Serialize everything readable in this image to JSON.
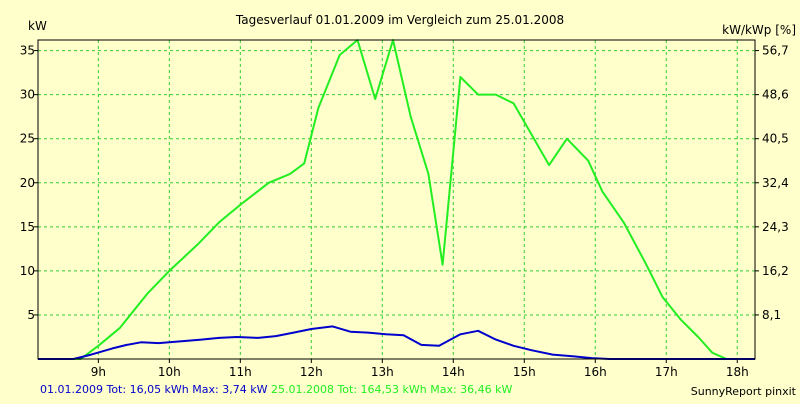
{
  "colors": {
    "background": "#ffffcc",
    "grid": "#33cc33",
    "series_green": "#22ee22",
    "series_blue": "#0000cc",
    "axis": "#000000"
  },
  "chart_data": {
    "type": "line",
    "title": "Tagesverlauf 01.01.2009 im Vergleich zum 25.01.2008",
    "ylabel_left": "kW",
    "ylabel_right": "kW/kWp [%]",
    "xlabel": "",
    "xlim": [
      8.15,
      18.25
    ],
    "ylim": [
      0,
      36.2
    ],
    "x_ticks": [
      {
        "value": 9,
        "label": "9h"
      },
      {
        "value": 10,
        "label": "10h"
      },
      {
        "value": 11,
        "label": "11h"
      },
      {
        "value": 12,
        "label": "12h"
      },
      {
        "value": 13,
        "label": "13h"
      },
      {
        "value": 14,
        "label": "14h"
      },
      {
        "value": 15,
        "label": "15h"
      },
      {
        "value": 16,
        "label": "16h"
      },
      {
        "value": 17,
        "label": "17h"
      },
      {
        "value": 18,
        "label": "18h"
      }
    ],
    "y_ticks_left": [
      {
        "value": 5,
        "label": "5"
      },
      {
        "value": 10,
        "label": "10"
      },
      {
        "value": 15,
        "label": "15"
      },
      {
        "value": 20,
        "label": "20"
      },
      {
        "value": 25,
        "label": "25"
      },
      {
        "value": 30,
        "label": "30"
      },
      {
        "value": 35,
        "label": "35"
      }
    ],
    "y_ticks_right": [
      {
        "value": 5,
        "label": "8,1"
      },
      {
        "value": 10,
        "label": "16,2"
      },
      {
        "value": 15,
        "label": "24,3"
      },
      {
        "value": 20,
        "label": "32,4"
      },
      {
        "value": 25,
        "label": "40,5"
      },
      {
        "value": 30,
        "label": "48,6"
      },
      {
        "value": 35,
        "label": "56,7"
      }
    ],
    "grid": true,
    "series": [
      {
        "name": "25.01.2008",
        "color_key": "series_green",
        "x": [
          8.15,
          8.75,
          9.0,
          9.3,
          9.7,
          10.0,
          10.4,
          10.7,
          11.0,
          11.4,
          11.7,
          11.9,
          12.1,
          12.4,
          12.65,
          12.9,
          13.15,
          13.4,
          13.65,
          13.85,
          14.1,
          14.35,
          14.6,
          14.85,
          15.1,
          15.35,
          15.6,
          15.9,
          16.1,
          16.4,
          16.7,
          16.95,
          17.2,
          17.45,
          17.65,
          17.85,
          18.05,
          18.25
        ],
        "y": [
          0.0,
          0.0,
          1.5,
          3.5,
          7.5,
          10.0,
          13.0,
          15.5,
          17.5,
          20.0,
          21.0,
          22.2,
          28.5,
          34.5,
          36.2,
          29.5,
          36.2,
          27.5,
          21.0,
          10.7,
          32.0,
          30.0,
          30.0,
          29.0,
          25.5,
          22.0,
          25.0,
          22.5,
          19.0,
          15.5,
          11.0,
          7.0,
          4.5,
          2.5,
          0.7,
          0.0,
          0.0,
          0.0
        ]
      },
      {
        "name": "01.01.2009",
        "color_key": "series_blue",
        "x": [
          8.15,
          8.65,
          8.9,
          9.2,
          9.4,
          9.6,
          9.85,
          10.15,
          10.45,
          10.7,
          10.95,
          11.25,
          11.5,
          11.75,
          12.0,
          12.3,
          12.55,
          12.8,
          13.05,
          13.3,
          13.55,
          13.8,
          14.1,
          14.35,
          14.6,
          14.85,
          15.1,
          15.4,
          15.7,
          15.95,
          16.2,
          16.45,
          16.7,
          17.0,
          17.5,
          18.25
        ],
        "y": [
          0.0,
          0.0,
          0.5,
          1.2,
          1.6,
          1.9,
          1.8,
          2.0,
          2.2,
          2.4,
          2.5,
          2.4,
          2.6,
          3.0,
          3.4,
          3.7,
          3.1,
          3.0,
          2.8,
          2.7,
          1.6,
          1.5,
          2.8,
          3.2,
          2.2,
          1.5,
          1.0,
          0.5,
          0.3,
          0.1,
          0.0,
          0.0,
          0.0,
          0.0,
          0.0,
          0.0
        ]
      }
    ],
    "legend": [
      {
        "text": "01.01.2009 Tot: 16,05 kWh Max: 3,74 kW",
        "color_key": "series_blue"
      },
      {
        "text": "25.01.2008 Tot: 164,53 kWh Max: 36,46 kW",
        "color_key": "series_green"
      }
    ],
    "credit": "SunnyReport pinxit",
    "legend_placement": "bottom-left"
  }
}
